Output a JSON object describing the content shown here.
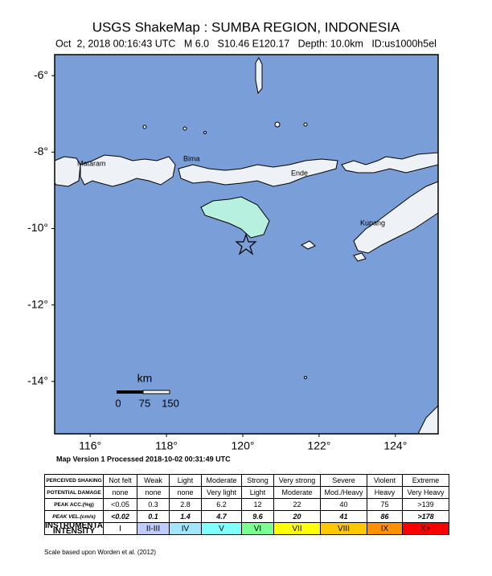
{
  "header": {
    "title": "USGS ShakeMap : SUMBA REGION, INDONESIA",
    "subtitle": "Oct  2, 2018 00:16:43 UTC   M 6.0   S10.46 E120.17   Depth: 10.0km   ID:us1000h5el"
  },
  "map": {
    "lon_range": [
      115.07,
      125.12
    ],
    "lat_range": [
      -15.37,
      -5.45
    ],
    "lon_ticks": [
      {
        "value": 116,
        "label": "116°"
      },
      {
        "value": 118,
        "label": "118°"
      },
      {
        "value": 120,
        "label": "120°"
      },
      {
        "value": 122,
        "label": "122°"
      },
      {
        "value": 124,
        "label": "124°"
      }
    ],
    "lat_ticks": [
      {
        "value": -6,
        "label": "-6°"
      },
      {
        "value": -8,
        "label": "-8°"
      },
      {
        "value": -10,
        "label": "-10°"
      },
      {
        "value": -12,
        "label": "-12°"
      },
      {
        "value": -14,
        "label": "-14°"
      }
    ],
    "places": [
      "Mataram",
      "Bima",
      "Ende",
      "Kupang"
    ],
    "scale": {
      "unit": "km",
      "labels": [
        "0",
        "75",
        "150"
      ]
    }
  },
  "footer": {
    "processed": "Map Version 1 Processed 2018-10-02 00:31:49 UTC",
    "credit": "Scale based upon Worden et al. (2012)"
  },
  "table": {
    "rows": [
      [
        "PERCEIVED SHAKING",
        "Not felt",
        "Weak",
        "Light",
        "Moderate",
        "Strong",
        "Very strong",
        "Severe",
        "Violent",
        "Extreme"
      ],
      [
        "POTENTIAL DAMAGE",
        "none",
        "none",
        "none",
        "Very light",
        "Light",
        "Moderate",
        "Mod./Heavy",
        "Heavy",
        "Very Heavy"
      ],
      [
        "PEAK ACC.(%g)",
        "<0.05",
        "0.3",
        "2.8",
        "6.2",
        "12",
        "22",
        "40",
        "75",
        ">139"
      ],
      [
        "PEAK VEL.(cm/s)",
        "<0.02",
        "0.1",
        "1.4",
        "4.7",
        "9.6",
        "20",
        "41",
        "86",
        ">178"
      ],
      [
        "INSTRUMENTAL INTENSITY",
        "I",
        "II-III",
        "IV",
        "V",
        "VI",
        "VII",
        "VIII",
        "IX",
        "X+"
      ]
    ],
    "intensity_colors": [
      "#ffffff",
      "#bfccff",
      "#a0e6ff",
      "#80ffff",
      "#7aff93",
      "#ffff00",
      "#ffc800",
      "#ff9100",
      "#ff0000"
    ]
  }
}
